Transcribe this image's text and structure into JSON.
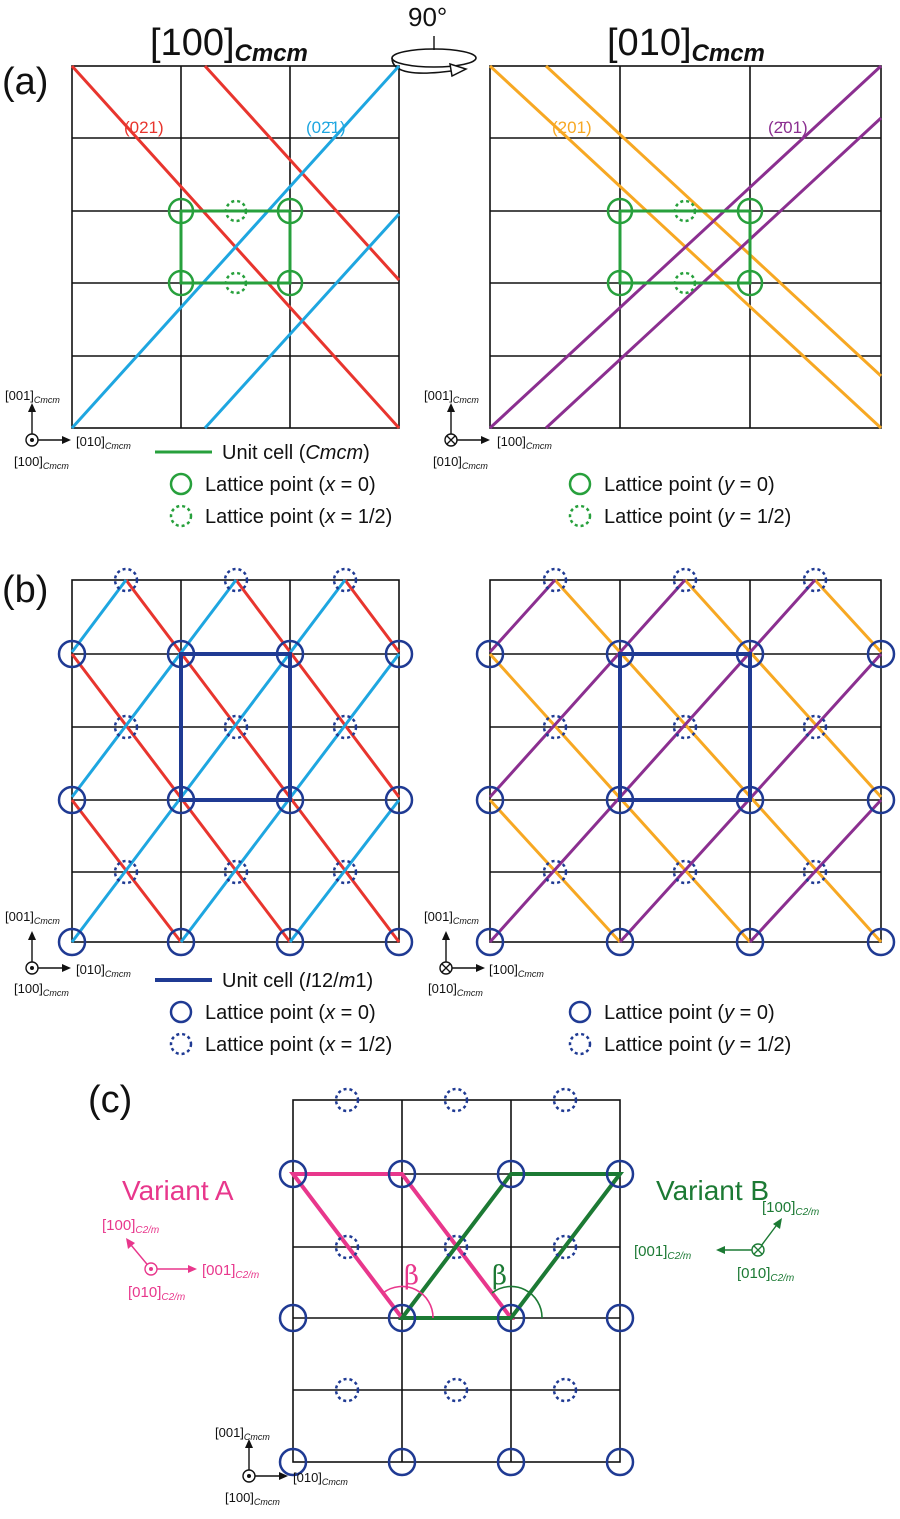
{
  "panels": {
    "a": {
      "label": "(a)",
      "rotation": "90°",
      "left_title_main": "[100]",
      "left_title_sub": "Cmcm",
      "right_title_main": "[010]",
      "right_title_sub": "Cmcm",
      "left_planes": {
        "red": "(021)",
        "blue": "(02̄1)"
      },
      "right_planes": {
        "orange": "(201)",
        "purple": "(2̄01)"
      },
      "axes_left": {
        "up": "[001]",
        "right": "[010]",
        "out": "[100]",
        "sub": "Cmcm",
        "out_symbol": "dot"
      },
      "axes_right": {
        "up": "[001]",
        "right": "[100]",
        "out": "[010]",
        "sub": "Cmcm",
        "out_symbol": "cross"
      },
      "legend": {
        "unit_cell_prefix": "Unit cell (",
        "unit_cell_italic": "Cmcm",
        "unit_cell_suffix": ")",
        "left_solid": [
          "Lattice point (",
          "x",
          " = 0)"
        ],
        "left_dashed": [
          "Lattice point (",
          "x",
          " = 1/2)"
        ],
        "right_solid": [
          "Lattice point (",
          "y",
          " = 0)"
        ],
        "right_dashed": [
          "Lattice point (",
          "y",
          " = 1/2)"
        ]
      }
    },
    "b": {
      "label": "(b)",
      "axes_left": {
        "up": "[001]",
        "right": "[010]",
        "out": "[100]",
        "sub": "Cmcm"
      },
      "axes_right": {
        "up": "[001]",
        "right": "[100]",
        "out": "[010]",
        "sub": "Cmcm"
      },
      "legend": {
        "unit_cell_prefix": "Unit cell (",
        "unit_cell_italic": "I",
        "unit_cell_mid": "12/",
        "unit_cell_italic2": "m",
        "unit_cell_suffix": "1)",
        "left_solid": [
          "Lattice point (",
          "x",
          " = 0)"
        ],
        "left_dashed": [
          "Lattice point (",
          "x",
          " = 1/2)"
        ],
        "right_solid": [
          "Lattice point (",
          "y",
          " = 0)"
        ],
        "right_dashed": [
          "Lattice point (",
          "y",
          " = 1/2)"
        ]
      }
    },
    "c": {
      "label": "(c)",
      "variant_a": "Variant A",
      "variant_b": "Variant B",
      "beta": "β",
      "axes_a": {
        "up": "[100]",
        "right": "[001]",
        "out": "[010]",
        "sub": "C2/m"
      },
      "axes_b": {
        "up": "[100]",
        "left": "[001]",
        "out": "[010]",
        "sub": "C2/m"
      },
      "axes_bottom": {
        "up": "[001]",
        "right": "[010]",
        "out": "[100]",
        "sub": "Cmcm"
      }
    }
  },
  "colors": {
    "grid": "#111111",
    "red": "#e8352e",
    "blue": "#1ea6e0",
    "orange": "#f7a823",
    "purple": "#8b2f90",
    "green": "#27a03c",
    "navy": "#1f3a93",
    "pink": "#e8378c",
    "darkgreen": "#1c7a34"
  }
}
